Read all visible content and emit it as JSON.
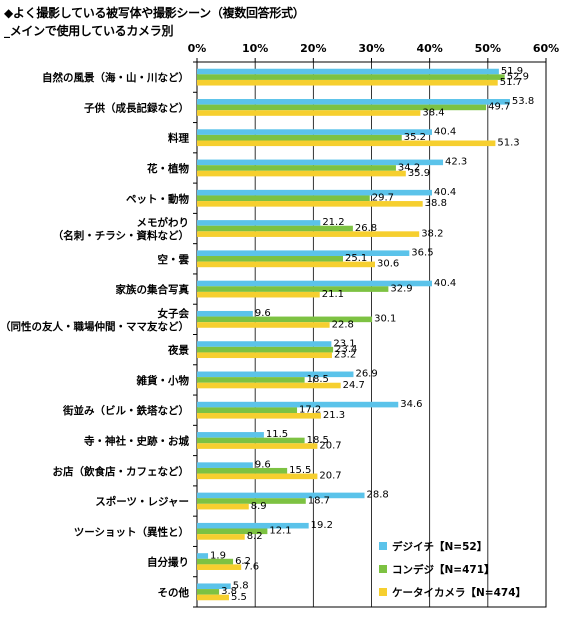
{
  "chart_data": {
    "type": "bar",
    "orientation": "horizontal",
    "title_lines": [
      "◆よく撮影している被写体や撮影シーン（複数回答形式）",
      "_メインで使用しているカメラ別"
    ],
    "x_ticks": [
      "0%",
      "10%",
      "20%",
      "30%",
      "40%",
      "50%",
      "60%"
    ],
    "xlim": [
      0,
      60
    ],
    "grid": true,
    "legend_position": "bottom-right",
    "categories": [
      [
        "自然の風景（海・山・川など）"
      ],
      [
        "子供（成長記録など）"
      ],
      [
        "料理"
      ],
      [
        "花・植物"
      ],
      [
        "ペット・動物"
      ],
      [
        "メモがわり",
        "（名刺・チラシ・資料など）"
      ],
      [
        "空・雲"
      ],
      [
        "家族の集合写真"
      ],
      [
        "女子会",
        "（同性の友人・職場仲間・ママ友など）"
      ],
      [
        "夜景"
      ],
      [
        "雑貨・小物"
      ],
      [
        "街並み（ビル・鉄塔など）"
      ],
      [
        "寺・神社・史跡・お城"
      ],
      [
        "お店（飲食店・カフェなど）"
      ],
      [
        "スポーツ・レジャー"
      ],
      [
        "ツーショット（異性と）"
      ],
      [
        "自分撮り"
      ],
      [
        "その他"
      ]
    ],
    "series": [
      {
        "name": "デジイチ【N=52】",
        "color": "#5BC3EA",
        "values": [
          51.9,
          53.8,
          40.4,
          42.3,
          40.4,
          21.2,
          36.5,
          40.4,
          9.6,
          23.1,
          26.9,
          34.6,
          11.5,
          9.6,
          28.8,
          19.2,
          1.9,
          5.8
        ]
      },
      {
        "name": "コンデジ【N=471】",
        "color": "#7DC242",
        "values": [
          52.9,
          49.7,
          35.2,
          34.2,
          29.7,
          26.8,
          25.1,
          32.9,
          30.1,
          23.4,
          18.5,
          17.2,
          18.5,
          15.5,
          18.7,
          12.1,
          6.2,
          3.8
        ]
      },
      {
        "name": "ケータイカメラ【N=474】",
        "color": "#F6CF2F",
        "values": [
          51.7,
          38.4,
          51.3,
          35.9,
          38.8,
          38.2,
          30.6,
          21.1,
          22.8,
          23.2,
          24.7,
          21.3,
          20.7,
          20.7,
          8.9,
          8.2,
          7.6,
          5.5
        ]
      }
    ]
  }
}
